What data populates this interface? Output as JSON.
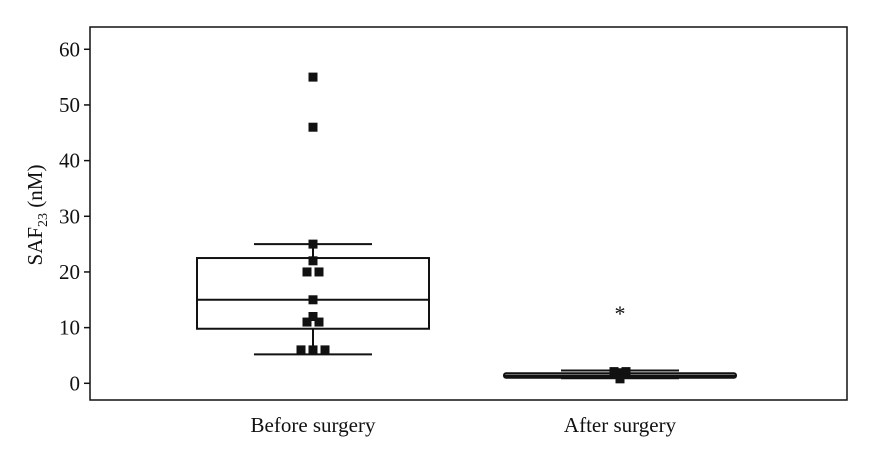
{
  "chart_data": {
    "type": "box",
    "ylabel_main": "SAF",
    "ylabel_sub": "23",
    "ylabel_unit": " (nM)",
    "ylim": [
      -3,
      64
    ],
    "yticks": [
      0,
      10,
      20,
      30,
      40,
      50,
      60
    ],
    "categories": [
      "Before surgery",
      "After surgery"
    ],
    "boxes": [
      {
        "category": "Before surgery",
        "whisker_low": 5.2,
        "q1": 9.8,
        "median": 15,
        "q3": 22.5,
        "whisker_high": 25,
        "points": [
          55,
          46,
          25,
          22,
          20,
          20,
          15,
          12,
          11,
          11,
          6,
          6,
          6
        ],
        "outliers": []
      },
      {
        "category": "After surgery",
        "whisker_low": 0.9,
        "q1": 1.0,
        "median": 1.3,
        "q3": 1.8,
        "whisker_high": 2.3,
        "points": [
          2.1,
          2.1,
          1.9,
          1.2,
          1.0,
          0.9,
          0.8
        ],
        "outliers": [
          13
        ]
      }
    ],
    "outlier_marker": "*",
    "grid": false,
    "legend": "none"
  }
}
